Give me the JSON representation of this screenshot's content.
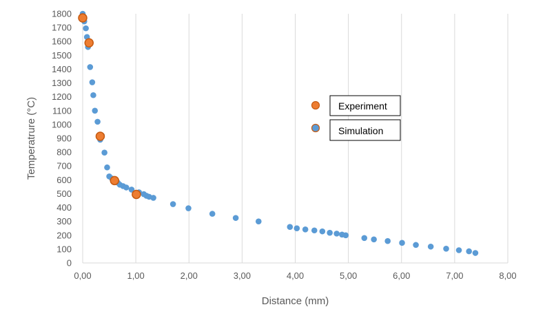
{
  "chart_data": {
    "type": "scatter",
    "title": "",
    "xlabel": "Distance (mm)",
    "ylabel": "Temperatrure (°C)",
    "xlim": [
      0,
      8
    ],
    "ylim": [
      0,
      1800
    ],
    "x_ticks": [
      0,
      1,
      2,
      3,
      4,
      5,
      6,
      7,
      8
    ],
    "x_tick_labels": [
      "0,00",
      "1,00",
      "2,00",
      "3,00",
      "4,00",
      "5,00",
      "6,00",
      "7,00",
      "8,00"
    ],
    "y_ticks": [
      0,
      100,
      200,
      300,
      400,
      500,
      600,
      700,
      800,
      900,
      1000,
      1100,
      1200,
      1300,
      1400,
      1500,
      1600,
      1700,
      1800
    ],
    "y_tick_labels": [
      "0",
      "100",
      "200",
      "300",
      "400",
      "500",
      "600",
      "700",
      "800",
      "900",
      "1000",
      "1100",
      "1200",
      "1300",
      "1400",
      "1500",
      "1600",
      "1700",
      "1800"
    ],
    "grid": {
      "vertical": true,
      "horizontal": false
    },
    "legend_position": "right-middle",
    "series": [
      {
        "name": "Simulation",
        "color": "#5B9BD5",
        "x": [
          0.0,
          0.03,
          0.06,
          0.08,
          0.1,
          0.14,
          0.18,
          0.2,
          0.23,
          0.28,
          0.33,
          0.36,
          0.41,
          0.46,
          0.5,
          0.55,
          0.6,
          0.66,
          0.7,
          0.76,
          0.82,
          0.92,
          1.06,
          1.15,
          1.2,
          1.25,
          1.33,
          1.7,
          1.99,
          2.44,
          2.88,
          3.31,
          3.9,
          4.03,
          4.19,
          4.36,
          4.51,
          4.65,
          4.78,
          4.88,
          4.95,
          5.3,
          5.48,
          5.74,
          6.01,
          6.27,
          6.55,
          6.84,
          7.08,
          7.27,
          7.39
        ],
        "y": [
          1800,
          1745,
          1695,
          1632,
          1560,
          1415,
          1305,
          1212,
          1100,
          1020,
          890,
          920,
          797,
          690,
          625,
          610,
          600,
          580,
          565,
          555,
          545,
          530,
          510,
          497,
          485,
          478,
          470,
          425,
          395,
          355,
          325,
          300,
          260,
          250,
          242,
          235,
          228,
          218,
          212,
          205,
          200,
          180,
          170,
          158,
          145,
          130,
          118,
          103,
          92,
          84,
          72
        ]
      },
      {
        "name": "Experiment",
        "color": "#ED7D31",
        "x": [
          0.0,
          0.12,
          0.33,
          0.6,
          1.01
        ],
        "y": [
          1770,
          1590,
          915,
          595,
          495
        ]
      }
    ]
  },
  "legend": {
    "items": [
      {
        "label": "Experiment",
        "fill": "#ED7D31",
        "stroke": "#C55A11"
      },
      {
        "label": "Simulation",
        "fill": "#5B9BD5",
        "stroke": "#C55A11"
      }
    ]
  }
}
